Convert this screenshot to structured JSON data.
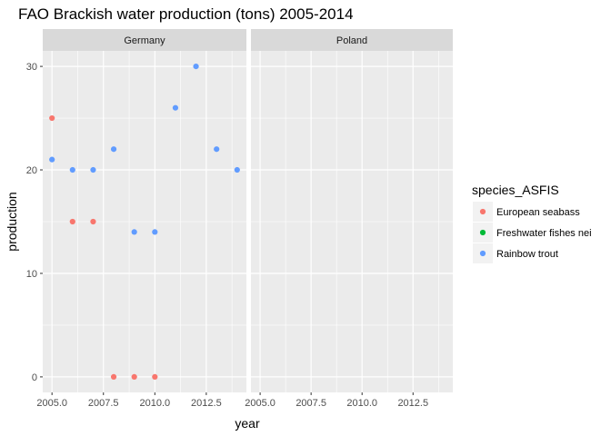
{
  "chart_data": {
    "type": "scatter",
    "title": "FAO Brackish water production (tons) 2005-2014",
    "xlabel": "year",
    "ylabel": "production",
    "xlim": [
      2004.55,
      2014.45
    ],
    "ylim": [
      -1.5,
      31.5
    ],
    "x_ticks": [
      2005,
      2007.5,
      2010,
      2012.5
    ],
    "x_tick_labels": [
      "2005.0",
      "2007.5",
      "2010.0",
      "2012.5"
    ],
    "y_ticks": [
      0,
      10,
      20,
      30
    ],
    "y_tick_labels": [
      "0",
      "10",
      "20",
      "30"
    ],
    "grid": true,
    "legend": {
      "title": "species_ASFIS",
      "placement": "right",
      "entries": [
        {
          "name": "European seabass",
          "color": "#F8766D"
        },
        {
          "name": "Freshwater fishes nei",
          "color": "#00BA38"
        },
        {
          "name": "Rainbow trout",
          "color": "#619CFF"
        }
      ]
    },
    "facets": [
      {
        "label": "Germany",
        "series": [
          {
            "name": "European seabass",
            "x": [
              2005,
              2006,
              2007,
              2008,
              2009,
              2010
            ],
            "y": [
              25,
              15,
              15,
              0,
              0,
              0
            ]
          },
          {
            "name": "Freshwater fishes nei",
            "x": [],
            "y": []
          },
          {
            "name": "Rainbow trout",
            "x": [
              2005,
              2006,
              2007,
              2008,
              2009,
              2010,
              2011,
              2012,
              2013,
              2014
            ],
            "y": [
              21,
              20,
              20,
              22,
              14,
              14,
              26,
              30,
              22,
              20
            ]
          }
        ]
      },
      {
        "label": "Poland",
        "series": []
      }
    ]
  }
}
